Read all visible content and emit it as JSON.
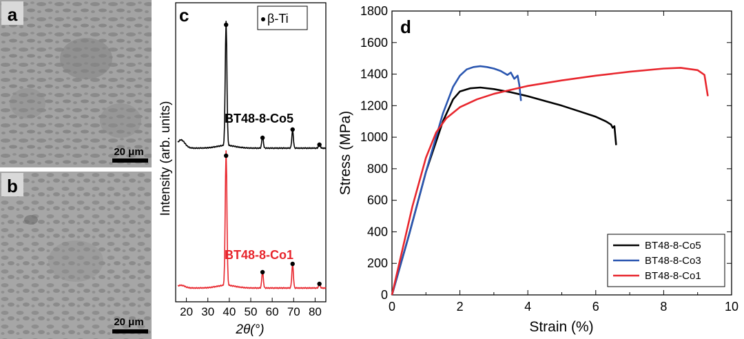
{
  "panels": {
    "a": {
      "letter": "a",
      "scale_bar": "20 μm"
    },
    "b": {
      "letter": "b",
      "scale_bar": "20 μm"
    },
    "c": {
      "letter": "c",
      "legend": "β-Ti",
      "ylabel": "Intensity (arb. units)",
      "xlabel": "2θ(°)",
      "curve_top_label": "BT48-8-Co5",
      "curve_bottom_label": "BT48-8-Co1",
      "colors": {
        "top": "#000000",
        "bottom": "#e8262d"
      }
    },
    "d": {
      "letter": "d"
    }
  },
  "chart_data": [
    {
      "type": "line",
      "panel": "c",
      "xlabel": "2θ(°)",
      "ylabel": "Intensity (arb. units)",
      "xlim": [
        15,
        85
      ],
      "xticks": [
        20,
        30,
        40,
        50,
        60,
        70,
        80
      ],
      "legend": [
        "β-Ti"
      ],
      "series": [
        {
          "name": "BT48-8-Co5",
          "color": "#000000",
          "peaks_2theta": [
            38.5,
            55.5,
            69.5,
            82.0
          ]
        },
        {
          "name": "BT48-8-Co1",
          "color": "#e8262d",
          "peaks_2theta": [
            38.5,
            55.5,
            69.5,
            82.0
          ]
        }
      ]
    },
    {
      "type": "line",
      "panel": "d",
      "xlabel": "Strain (%)",
      "ylabel": "Stress (MPa)",
      "xlim": [
        0,
        10
      ],
      "ylim": [
        0,
        1800
      ],
      "xticks": [
        0,
        2,
        4,
        6,
        8,
        10
      ],
      "yticks": [
        0,
        200,
        400,
        600,
        800,
        1000,
        1200,
        1400,
        1600,
        1800
      ],
      "legend_position": "bottom-right",
      "series": [
        {
          "name": "BT48-8-Co5",
          "color": "#000000",
          "x": [
            0,
            0.5,
            1.0,
            1.5,
            1.8,
            2.0,
            2.3,
            2.6,
            3.0,
            3.5,
            4.0,
            4.5,
            5.0,
            5.5,
            6.0,
            6.3,
            6.45,
            6.5,
            6.55,
            6.6
          ],
          "y": [
            0,
            380,
            780,
            1100,
            1240,
            1290,
            1310,
            1315,
            1305,
            1285,
            1260,
            1230,
            1200,
            1165,
            1130,
            1100,
            1080,
            1060,
            1070,
            950
          ]
        },
        {
          "name": "BT48-8-Co3",
          "color": "#2a56b0",
          "x": [
            0,
            0.5,
            1.0,
            1.5,
            1.8,
            2.0,
            2.2,
            2.4,
            2.6,
            2.8,
            3.0,
            3.2,
            3.4,
            3.5,
            3.6,
            3.7,
            3.75,
            3.8
          ],
          "y": [
            0,
            380,
            780,
            1150,
            1320,
            1390,
            1430,
            1445,
            1450,
            1445,
            1435,
            1420,
            1395,
            1410,
            1370,
            1390,
            1330,
            1230
          ]
        },
        {
          "name": "BT48-8-Co1",
          "color": "#e8262d",
          "x": [
            0,
            0.3,
            0.6,
            1.0,
            1.3,
            1.6,
            2.0,
            2.5,
            3.0,
            3.5,
            4.0,
            5.0,
            6.0,
            7.0,
            8.0,
            8.5,
            9.0,
            9.2,
            9.3
          ],
          "y": [
            0,
            280,
            560,
            870,
            1030,
            1120,
            1190,
            1240,
            1275,
            1300,
            1325,
            1360,
            1390,
            1415,
            1435,
            1440,
            1425,
            1395,
            1260
          ]
        }
      ]
    }
  ]
}
